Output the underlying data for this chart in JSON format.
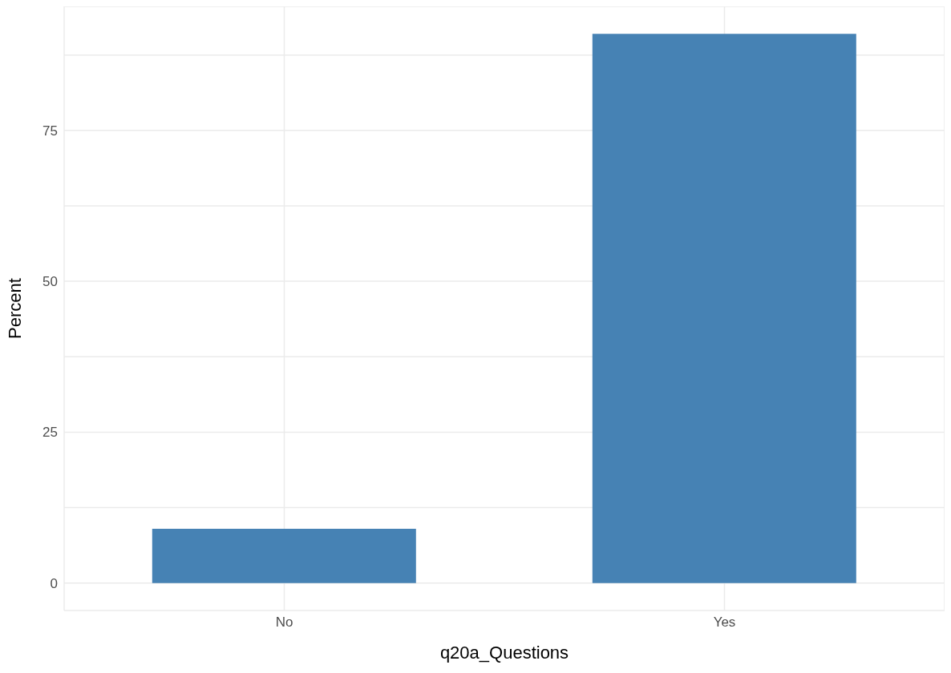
{
  "chart_data": {
    "type": "bar",
    "xlabel": "q20a_Questions",
    "ylabel": "Percent",
    "categories": [
      "No",
      "Yes"
    ],
    "values": [
      9,
      91
    ],
    "color": "#4682b4",
    "ylim": [
      -4.55,
      95.55
    ],
    "yticks": [
      0,
      {
        "value": 12.5,
        "label": null
      },
      25,
      {
        "value": 37.5,
        "label": null
      },
      50,
      {
        "value": 62.5,
        "label": null
      },
      75,
      {
        "value": 87.5,
        "label": null
      }
    ],
    "grid": true
  }
}
